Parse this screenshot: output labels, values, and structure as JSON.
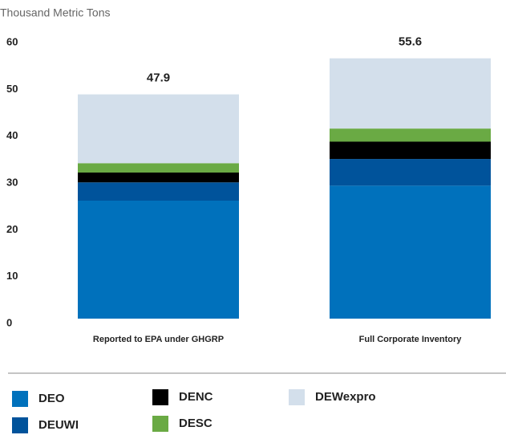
{
  "chart_data": {
    "type": "stacked_bar",
    "y_axis_label": "Thousand Metric Tons",
    "categories": [
      "Reported to EPA under GHGRP",
      "Full Corporate Inventory"
    ],
    "series": [
      {
        "name": "DEO",
        "color": "#0071bc",
        "values": [
          25.2,
          28.4
        ]
      },
      {
        "name": "DEUWI",
        "color": "#00539b",
        "values": [
          3.9,
          5.7
        ]
      },
      {
        "name": "DENC",
        "color": "#000000",
        "values": [
          2.1,
          3.7
        ]
      },
      {
        "name": "DESC",
        "color": "#6aaa44",
        "values": [
          2.0,
          2.8
        ]
      },
      {
        "name": "DEWexpro",
        "color": "#d3dfeb",
        "values": [
          14.7,
          15.0
        ]
      }
    ],
    "totals": [
      47.9,
      55.6
    ],
    "ylim": [
      0,
      60
    ],
    "yticks": [
      0,
      10,
      20,
      30,
      40,
      50,
      60
    ],
    "grid": false
  }
}
